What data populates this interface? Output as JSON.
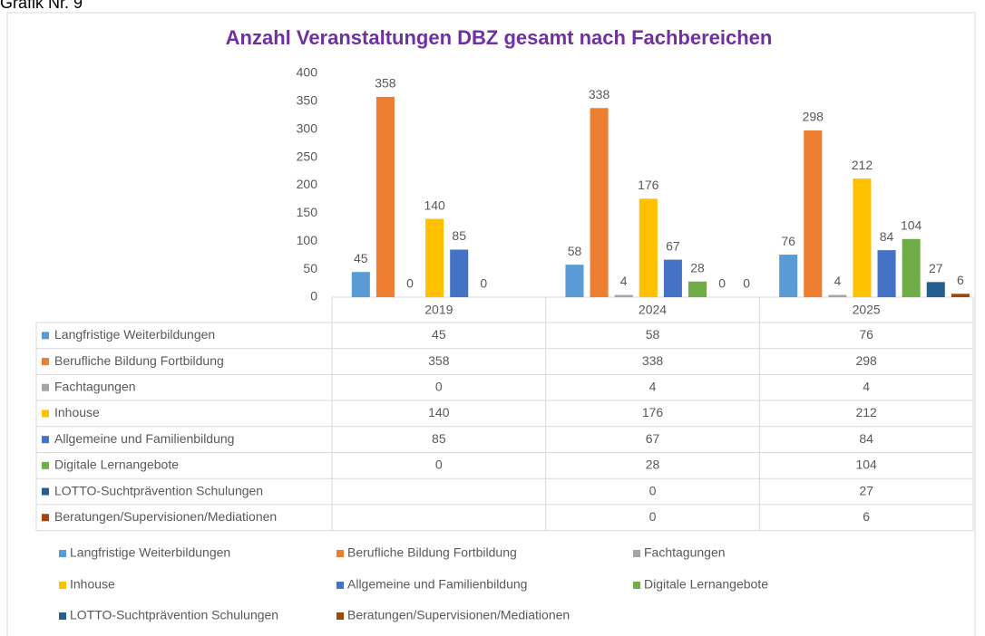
{
  "chart_data": {
    "type": "bar",
    "caption": "Grafik Nr. 9",
    "title": "Anzahl Veranstaltungen DBZ gesamt nach Fachbereichen",
    "categories": [
      "2019",
      "2024",
      "2025"
    ],
    "series": [
      {
        "name": "Langfristige Weiterbildungen",
        "color": "#5b9bd5",
        "values": [
          45,
          58,
          76
        ]
      },
      {
        "name": "Berufliche Bildung Fortbildung",
        "color": "#ed7d31",
        "values": [
          358,
          338,
          298
        ]
      },
      {
        "name": "Fachtagungen",
        "color": "#a5a5a5",
        "values": [
          0,
          4,
          4
        ]
      },
      {
        "name": "Inhouse",
        "color": "#ffc000",
        "values": [
          140,
          176,
          212
        ]
      },
      {
        "name": "Allgemeine und Familienbildung",
        "color": "#4472c4",
        "values": [
          85,
          67,
          84
        ]
      },
      {
        "name": "Digitale Lernangebote",
        "color": "#70ad47",
        "values": [
          0,
          28,
          104
        ]
      },
      {
        "name": "LOTTO-Suchtprävention Schulungen",
        "color": "#255e91",
        "values": [
          null,
          0,
          27
        ]
      },
      {
        "name": "Beratungen/Supervisionen/Mediationen",
        "color": "#9e480e",
        "values": [
          null,
          0,
          6
        ]
      }
    ],
    "ylim": [
      0,
      400
    ],
    "yticks": [
      0,
      50,
      100,
      150,
      200,
      250,
      300,
      350,
      400
    ],
    "grid": false,
    "legend": "bottom",
    "data_table": true
  }
}
